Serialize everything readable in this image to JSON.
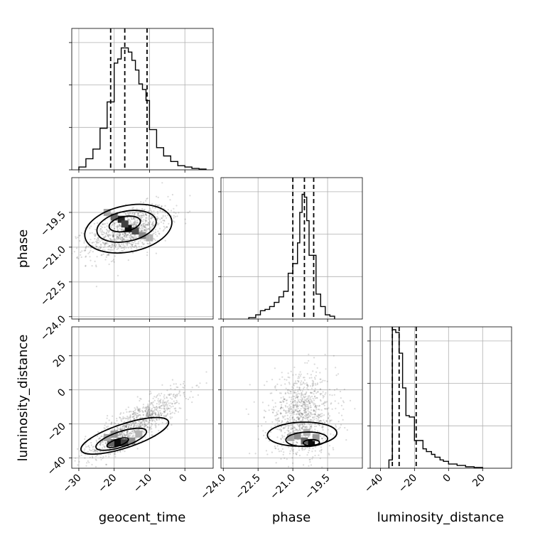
{
  "chart_data": {
    "type": "corner",
    "parameters": [
      "geocent_time",
      "phase",
      "luminosity_distance"
    ],
    "quantiles": {
      "geocent_time": [
        -21,
        -17,
        -10.7
      ],
      "phase": [
        -21.0,
        -20.5,
        -20.1
      ],
      "luminosity_distance": [
        -33,
        -29,
        -19
      ]
    },
    "ranges": {
      "geocent_time": [
        -32,
        8
      ],
      "phase": [
        -24.1,
        -18.0
      ],
      "luminosity_distance": [
        -46,
        37
      ]
    },
    "ticks": {
      "geocent_time": [
        -30,
        -20,
        -10,
        0
      ],
      "phase": [
        -24.0,
        -22.5,
        -21.0,
        -19.5
      ],
      "luminosity_distance": [
        -40,
        -20,
        0,
        20
      ]
    },
    "tick_labels": {
      "geocent_time": [
        "−30",
        "−20",
        "−10",
        "0"
      ],
      "phase": [
        "−24.0",
        "−22.5",
        "−21.0",
        "−19.5"
      ],
      "luminosity_distance": [
        "−40",
        "−20",
        "0",
        "20"
      ]
    },
    "histograms": {
      "geocent_time": {
        "bin_edges": [
          -30,
          -28,
          -26,
          -24,
          -22,
          -20,
          -19,
          -18,
          -17,
          -16,
          -15,
          -14,
          -13,
          -12,
          -11,
          -10,
          -8,
          -6,
          -4,
          -2,
          0,
          2,
          4,
          6
        ],
        "counts": [
          0.02,
          0.08,
          0.15,
          0.3,
          0.49,
          0.77,
          0.8,
          0.88,
          0.88,
          0.85,
          0.79,
          0.72,
          0.62,
          0.58,
          0.5,
          0.29,
          0.16,
          0.1,
          0.06,
          0.03,
          0.02,
          0.01,
          0.005
        ]
      },
      "phase": {
        "bin_edges": [
          -22.9,
          -22.6,
          -22.4,
          -22.2,
          -22.0,
          -21.8,
          -21.6,
          -21.4,
          -21.2,
          -21.0,
          -20.8,
          -20.7,
          -20.6,
          -20.5,
          -20.4,
          -20.3,
          -20.2,
          -20.0,
          -19.8,
          -19.6,
          -19.4,
          -19.2
        ],
        "counts": [
          0.01,
          0.03,
          0.06,
          0.07,
          0.09,
          0.12,
          0.16,
          0.2,
          0.33,
          0.4,
          0.55,
          0.77,
          0.9,
          0.88,
          0.71,
          0.46,
          0.46,
          0.18,
          0.09,
          0.03,
          0.02
        ]
      },
      "luminosity_distance": {
        "bin_edges": [
          -35,
          -33,
          -31,
          -29,
          -27,
          -25,
          -23,
          -20,
          -18,
          -15,
          -13,
          -10,
          -8,
          -5,
          -3,
          0,
          5,
          10,
          15,
          20
        ],
        "counts": [
          0.06,
          1.0,
          0.98,
          0.83,
          0.58,
          0.38,
          0.37,
          0.2,
          0.2,
          0.14,
          0.12,
          0.1,
          0.08,
          0.06,
          0.05,
          0.03,
          0.02,
          0.01,
          0.005
        ]
      }
    },
    "joint": [
      {
        "x": "geocent_time",
        "y": "phase",
        "points": {
          "cx": -16,
          "cy": -20.3,
          "sx": 5.8,
          "sy": 0.55,
          "rho": 0.55,
          "n": 1000
        },
        "hist2d": [
          [
            -18,
            -19.8,
            0.85
          ],
          [
            -16,
            -20.2,
            0.95
          ],
          [
            -14,
            -20.3,
            0.7
          ],
          [
            -20,
            -19.7,
            0.6
          ],
          [
            -12,
            -20.5,
            0.45
          ],
          [
            -17,
            -20.0,
            0.75
          ],
          [
            -22,
            -19.5,
            0.35
          ],
          [
            -10,
            -20.6,
            0.3
          ]
        ],
        "contours": [
          {
            "cx": -17,
            "cy": -20.0,
            "rx": 4.5,
            "ry": 0.32
          },
          {
            "cx": -16.5,
            "cy": -20.1,
            "rx": 8.5,
            "ry": 0.65
          },
          {
            "cx": -16,
            "cy": -20.2,
            "rx": 12.5,
            "ry": 1.0
          }
        ]
      },
      {
        "x": "geocent_time",
        "y": "luminosity_distance",
        "points": {
          "cx": -14,
          "cy": -20,
          "sx": 7,
          "sy": 10,
          "rho": 0.85,
          "n": 1000
        },
        "hist2d": [
          [
            -19,
            -31,
            0.95
          ],
          [
            -17,
            -31,
            0.75
          ],
          [
            -21,
            -31,
            0.6
          ],
          [
            -15,
            -30,
            0.45
          ],
          [
            -22,
            -28,
            0.35
          ],
          [
            -13,
            -26,
            0.3
          ],
          [
            -20,
            -26,
            0.4
          ]
        ],
        "contours": [
          {
            "cx": -19,
            "cy": -31,
            "rx": 3.2,
            "ry": 2.0
          },
          {
            "cx": -18,
            "cy": -29,
            "rx": 7.5,
            "ry": 4.5
          },
          {
            "cx": -17,
            "cy": -27,
            "rx": 13.0,
            "ry": 7.0
          }
        ]
      },
      {
        "x": "phase",
        "y": "luminosity_distance",
        "points": {
          "cx": -20.6,
          "cy": -15,
          "sx": 0.75,
          "sy": 12,
          "rho": 0.05,
          "n": 1000
        },
        "hist2d": [
          [
            -20.2,
            -31,
            0.95
          ],
          [
            -20.5,
            -30,
            0.6
          ],
          [
            -20.8,
            -27,
            0.45
          ],
          [
            -20.0,
            -28,
            0.4
          ],
          [
            -21.1,
            -28,
            0.35
          ],
          [
            -20.4,
            -25,
            0.3
          ]
        ],
        "contours": [
          {
            "cx": -20.2,
            "cy": -31,
            "rx": 0.35,
            "ry": 1.8
          },
          {
            "cx": -20.4,
            "cy": -29,
            "rx": 0.9,
            "ry": 4.2
          },
          {
            "cx": -20.6,
            "cy": -26,
            "rx": 1.5,
            "ry": 7.0
          }
        ]
      }
    ],
    "grid": true,
    "colors": {
      "line": "#000000",
      "points": "#555555",
      "grid": "#b0b0b0"
    }
  }
}
